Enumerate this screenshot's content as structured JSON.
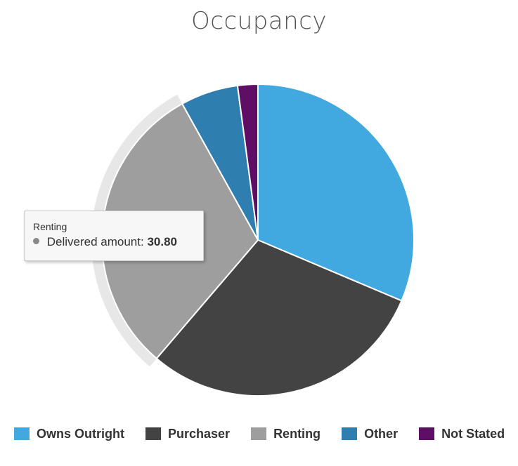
{
  "chart_data": {
    "type": "pie",
    "title": "Occupancy",
    "series_name": "Delivered amount",
    "slices": [
      {
        "label": "Owns Outright",
        "value": 31.5,
        "color": "#41a9e0"
      },
      {
        "label": "Purchaser",
        "value": 30.0,
        "color": "#434343"
      },
      {
        "label": "Renting",
        "value": 30.8,
        "color": "#9e9e9e"
      },
      {
        "label": "Other",
        "value": 6.0,
        "color": "#2f7eb0"
      },
      {
        "label": "Not Stated",
        "value": 2.1,
        "color": "#5e0e64"
      }
    ],
    "hovered_index": 2,
    "legend_position": "bottom"
  },
  "tooltip": {
    "title": "Renting",
    "series_label": "Delivered amount:",
    "value": "30.80"
  }
}
